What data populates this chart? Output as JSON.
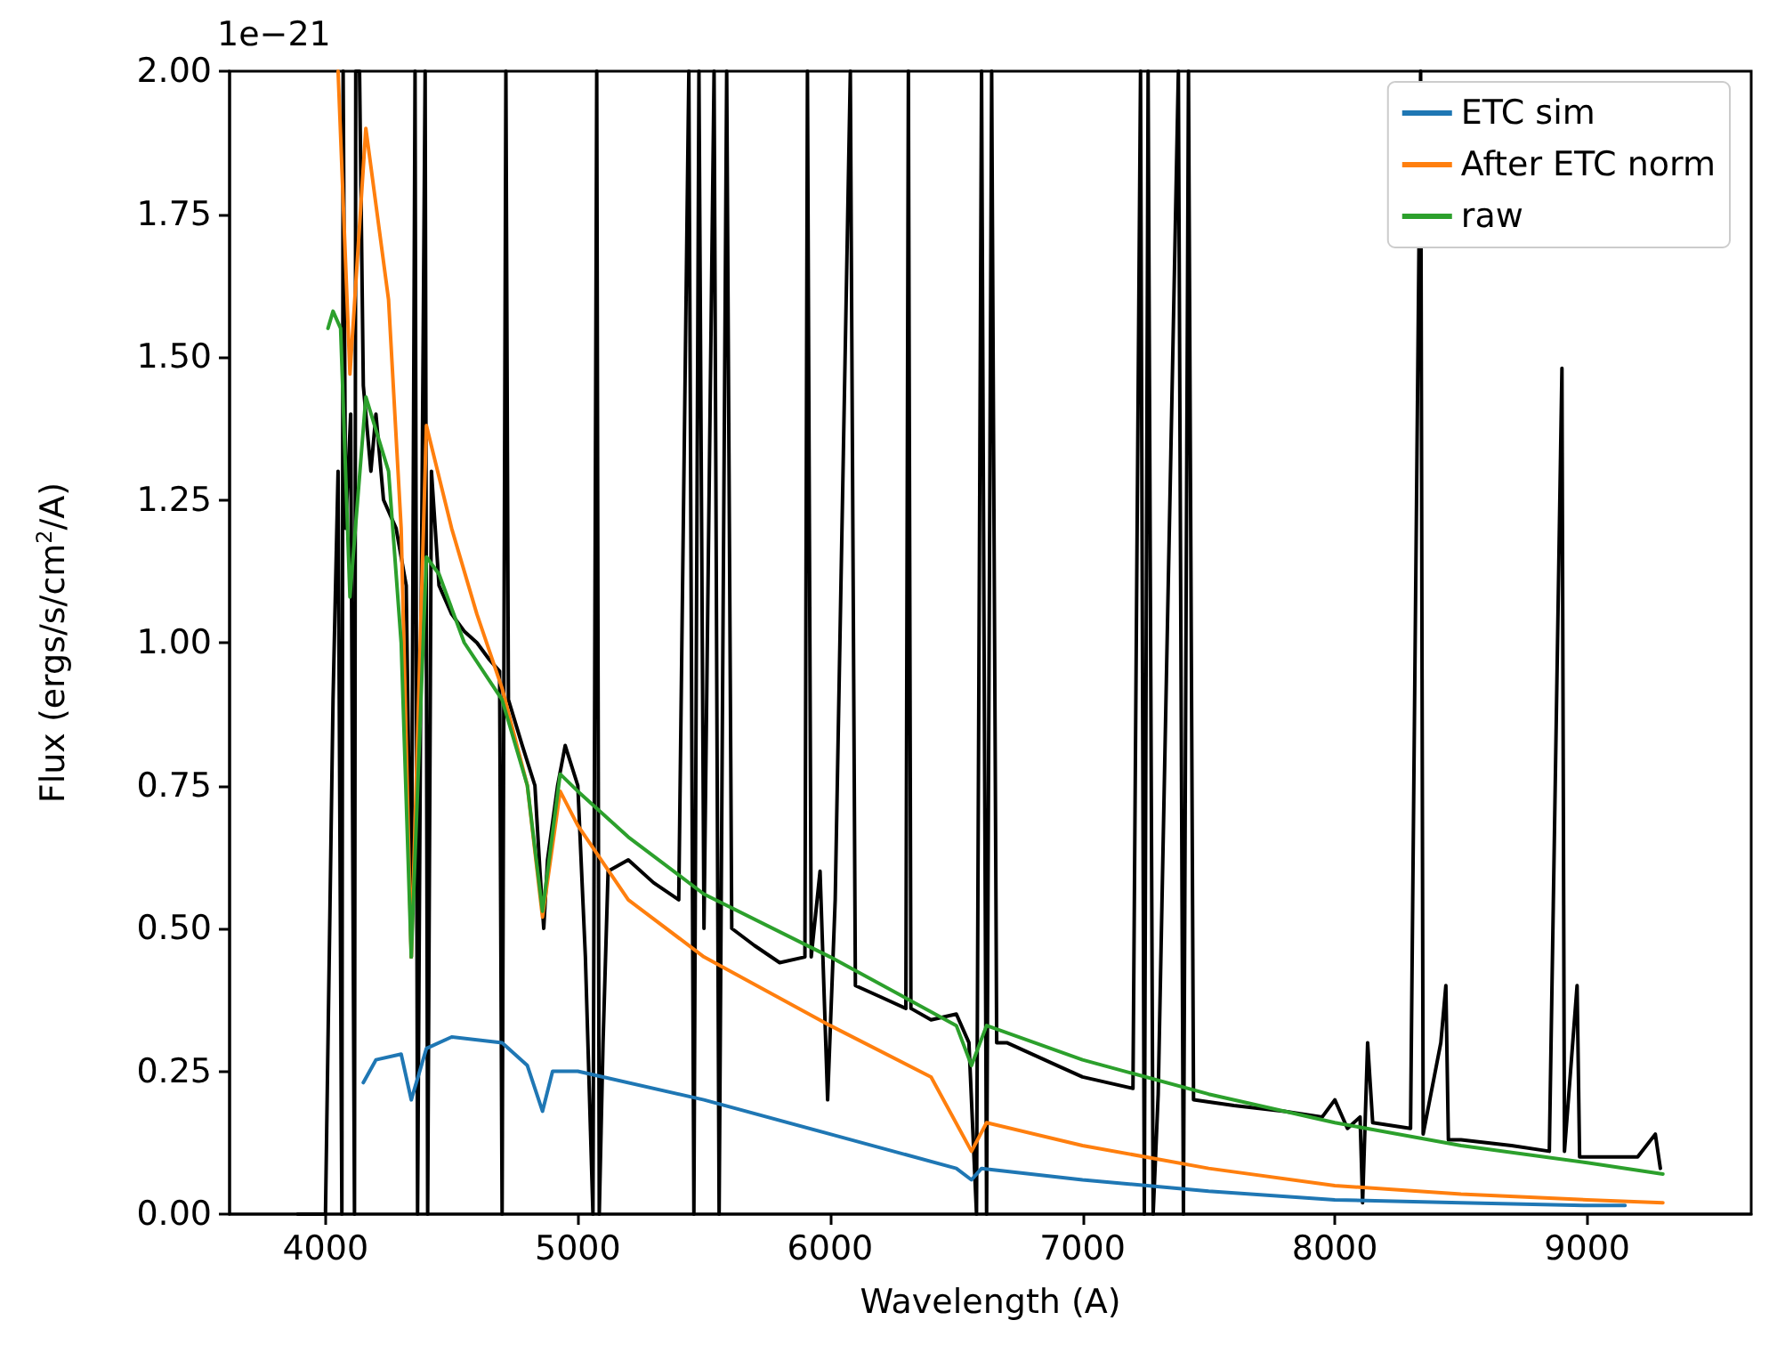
{
  "chart_data": {
    "type": "line",
    "xlabel": "Wavelength (A)",
    "ylabel": "Flux (ergs/s/cm$^{2}$/A)",
    "annotations": [
      "1e−21"
    ],
    "xlim": [
      3620,
      9650
    ],
    "xticks": [
      4000,
      5000,
      6000,
      7000,
      8000,
      9000
    ],
    "ylim": [
      0,
      2
    ],
    "yticks": [
      {
        "value": 0,
        "label": "0.00"
      },
      {
        "value": 0.25,
        "label": "0.25"
      },
      {
        "value": 0.5,
        "label": "0.50"
      },
      {
        "value": 0.75,
        "label": "0.75"
      },
      {
        "value": 1,
        "label": "1.00"
      },
      {
        "value": 1.25,
        "label": "1.25"
      },
      {
        "value": 1.5,
        "label": "1.50"
      },
      {
        "value": 1.75,
        "label": "1.75"
      },
      {
        "value": 2,
        "label": "2.00"
      }
    ],
    "legend": "top right",
    "marker": "none",
    "line_style": "solid",
    "series": [
      {
        "color": "#000000",
        "x": [
          3890,
          4000,
          4030,
          4050,
          4065,
          4070,
          4080,
          4100,
          4115,
          4120,
          4135,
          4150,
          4180,
          4200,
          4230,
          4280,
          4320,
          4340,
          4355,
          4365,
          4380,
          4395,
          4405,
          4420,
          4450,
          4500,
          4550,
          4600,
          4650,
          4690,
          4700,
          4715,
          4725,
          4780,
          4830,
          4850,
          4865,
          4880,
          4920,
          4950,
          5000,
          5030,
          5060,
          5075,
          5085,
          5100,
          5120,
          5200,
          5300,
          5400,
          5440,
          5460,
          5480,
          5500,
          5540,
          5560,
          5590,
          5610,
          5700,
          5800,
          5900,
          5910,
          5925,
          5960,
          5990,
          6020,
          6080,
          6100,
          6200,
          6300,
          6310,
          6320,
          6400,
          6500,
          6550,
          6580,
          6600,
          6620,
          6640,
          6660,
          6700,
          6900,
          7000,
          7200,
          7230,
          7245,
          7260,
          7280,
          7300,
          7380,
          7400,
          7420,
          7440,
          7600,
          7800,
          7950,
          8000,
          8050,
          8100,
          8110,
          8130,
          8150,
          8300,
          8340,
          8350,
          8420,
          8440,
          8450,
          8500,
          8700,
          8850,
          8900,
          8910,
          8960,
          8970,
          9100,
          9200,
          9270,
          9290
        ],
        "values": [
          0,
          0,
          0.9,
          1.3,
          0,
          2,
          1.2,
          1.4,
          0,
          2,
          2,
          1.45,
          1.3,
          1.4,
          1.25,
          1.2,
          1.1,
          0.45,
          2,
          0,
          1.1,
          2,
          0,
          1.3,
          1.1,
          1.05,
          1.02,
          1,
          0.97,
          0.95,
          0,
          2,
          0.9,
          0.82,
          0.75,
          0.6,
          0.5,
          0.62,
          0.75,
          0.82,
          0.75,
          0.45,
          0,
          2,
          0,
          0.3,
          0.6,
          0.62,
          0.58,
          0.55,
          2,
          0,
          2,
          0.5,
          2,
          0,
          2,
          0.5,
          0.47,
          0.44,
          0.45,
          2,
          0.45,
          0.6,
          0.2,
          0.55,
          2,
          0.4,
          0.38,
          0.36,
          2,
          0.36,
          0.34,
          0.35,
          0.3,
          0,
          2,
          0,
          2,
          0.3,
          0.3,
          0.26,
          0.24,
          0.22,
          2,
          0,
          2,
          0,
          0.21,
          2,
          0,
          2,
          0.2,
          0.19,
          0.18,
          0.17,
          0.2,
          0.15,
          0.17,
          0.02,
          0.3,
          0.16,
          0.15,
          2,
          0.14,
          0.3,
          0.4,
          0.13,
          0.13,
          0.12,
          0.11,
          1.48,
          0.11,
          0.4,
          0.1,
          0.1,
          0.1,
          0.14,
          0.08
        ]
      },
      {
        "name": "ETC sim",
        "color": "#1f77b4",
        "x": [
          4150,
          4200,
          4300,
          4340,
          4400,
          4500,
          4700,
          4800,
          4860,
          4900,
          5000,
          5500,
          6000,
          6500,
          6560,
          6600,
          7000,
          7500,
          8000,
          8500,
          9000,
          9150
        ],
        "values": [
          0.23,
          0.27,
          0.28,
          0.2,
          0.29,
          0.31,
          0.3,
          0.26,
          0.18,
          0.25,
          0.25,
          0.2,
          0.14,
          0.08,
          0.06,
          0.08,
          0.06,
          0.04,
          0.025,
          0.02,
          0.015,
          0.015
        ]
      },
      {
        "name": "After ETC norm",
        "color": "#ff7f0e",
        "x": [
          4050,
          4097,
          4160,
          4250,
          4300,
          4340,
          4400,
          4500,
          4600,
          4700,
          4800,
          4860,
          4930,
          5000,
          5200,
          5500,
          6000,
          6400,
          6560,
          6620,
          7000,
          7500,
          8000,
          8500,
          9000,
          9300
        ],
        "values": [
          2,
          1.47,
          1.9,
          1.6,
          1.2,
          0.45,
          1.38,
          1.2,
          1.05,
          0.92,
          0.75,
          0.52,
          0.74,
          0.68,
          0.55,
          0.45,
          0.33,
          0.24,
          0.11,
          0.16,
          0.12,
          0.08,
          0.05,
          0.035,
          0.025,
          0.02
        ]
      },
      {
        "name": "raw",
        "color": "#2ca02c",
        "x": [
          4010,
          4030,
          4060,
          4097,
          4160,
          4250,
          4300,
          4340,
          4400,
          4450,
          4550,
          4700,
          4800,
          4860,
          4930,
          5000,
          5200,
          5500,
          6000,
          6500,
          6560,
          6620,
          7000,
          7500,
          8000,
          8500,
          9000,
          9300
        ],
        "values": [
          1.55,
          1.58,
          1.55,
          1.08,
          1.43,
          1.3,
          1,
          0.45,
          1.15,
          1.12,
          1,
          0.9,
          0.75,
          0.53,
          0.77,
          0.74,
          0.66,
          0.56,
          0.45,
          0.33,
          0.26,
          0.33,
          0.27,
          0.21,
          0.16,
          0.12,
          0.09,
          0.07
        ]
      }
    ]
  }
}
